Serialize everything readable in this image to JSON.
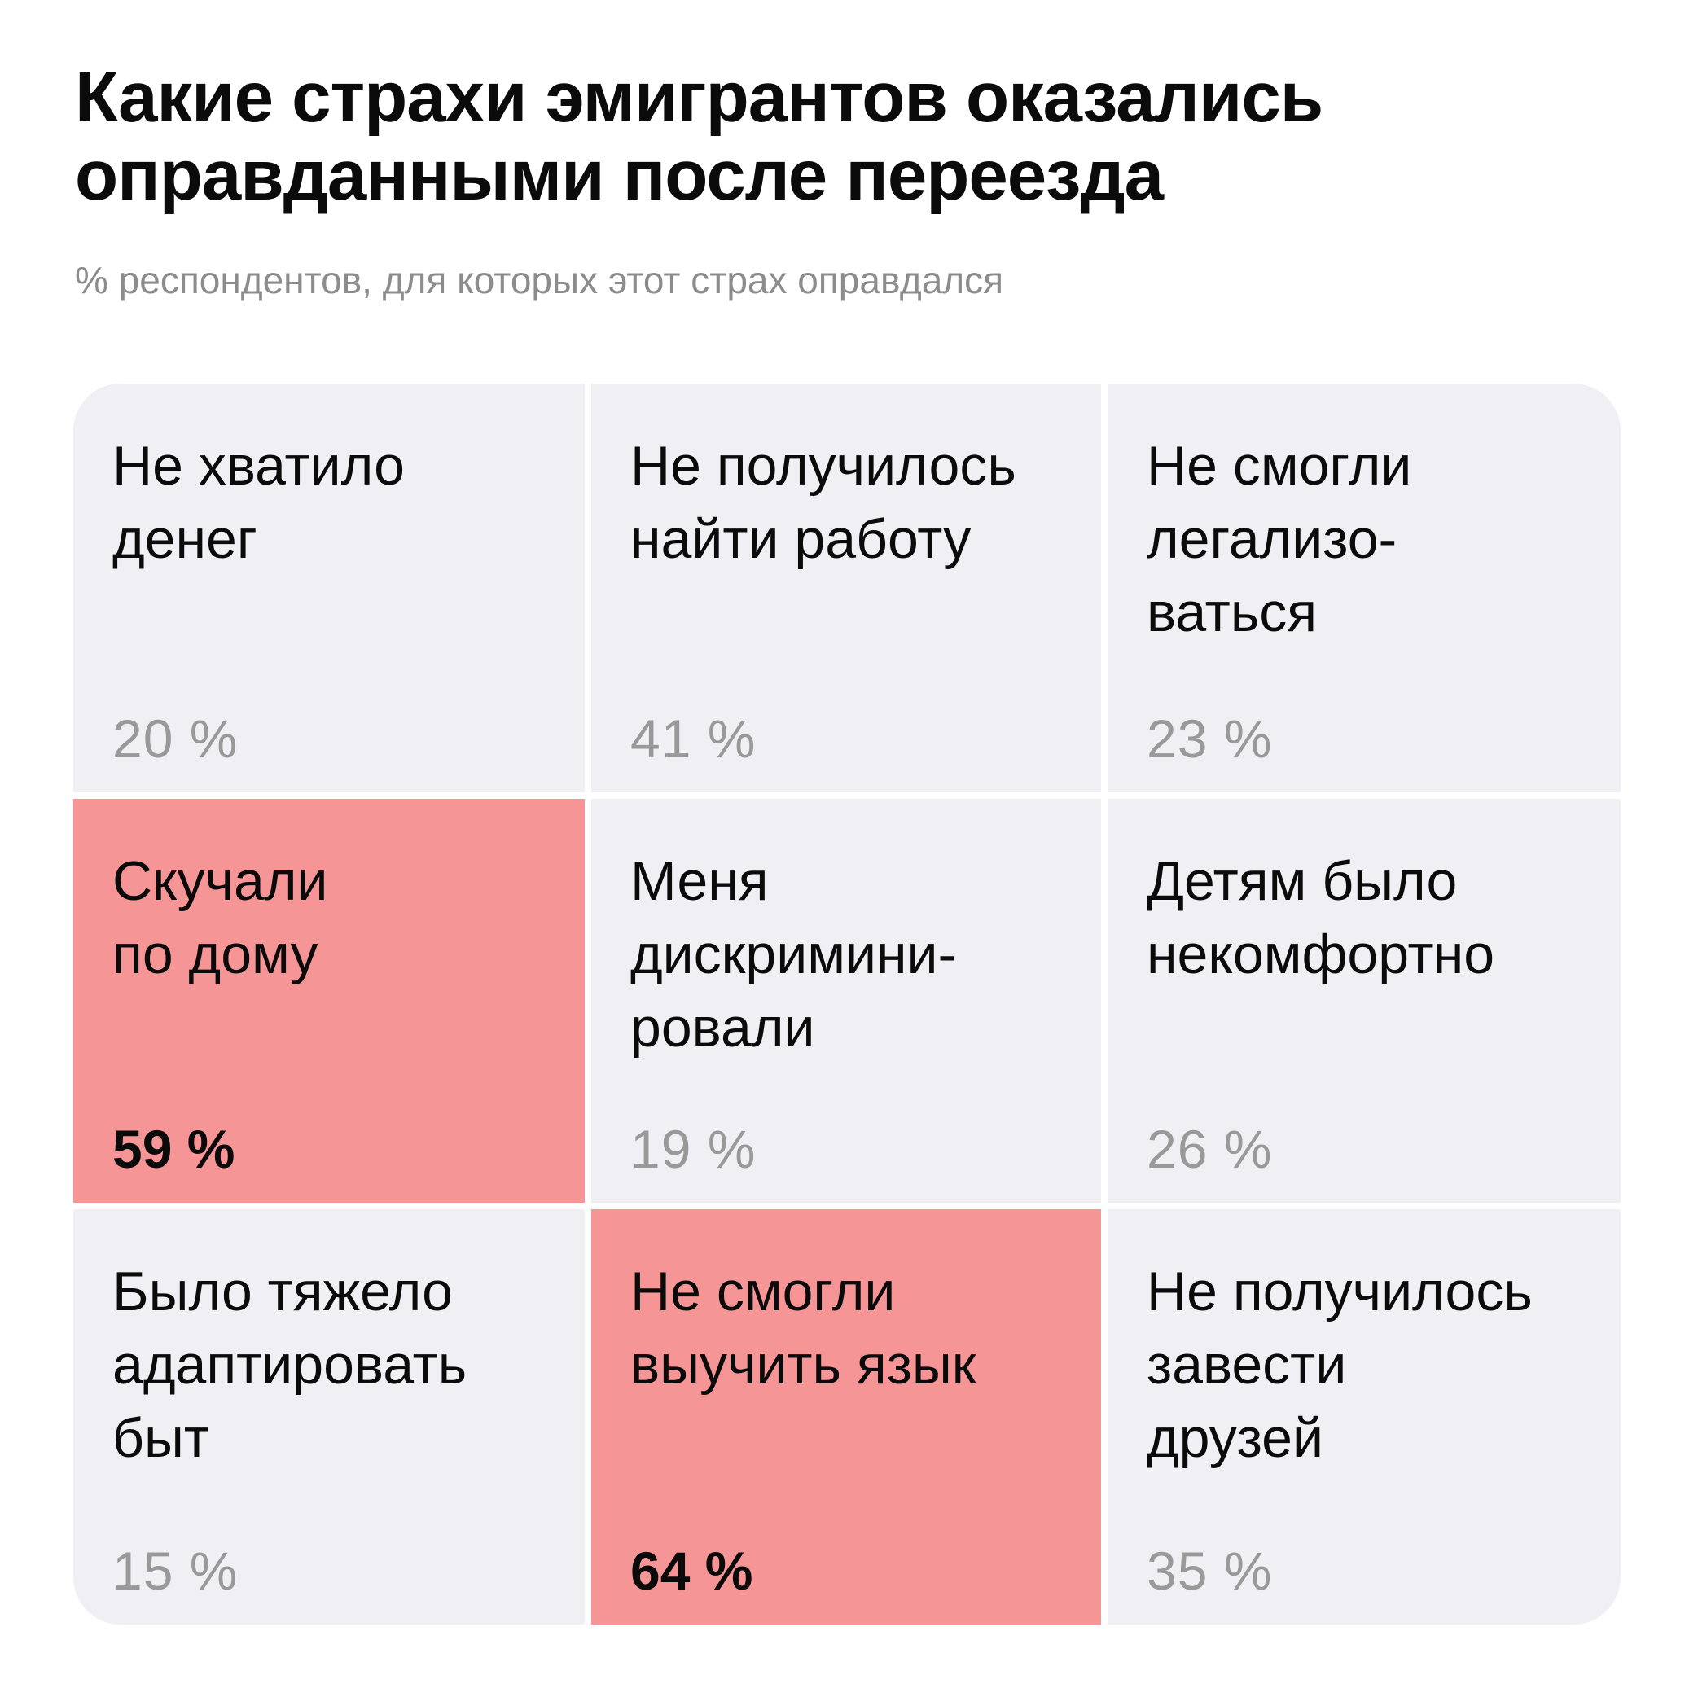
{
  "title": "Какие страхи эмигрантов оказались оправданными после переезда",
  "subtitle": "% респондентов, для которых этот страх оправдался",
  "colors": {
    "cell_background": "#efeff4",
    "highlight_background": "#f69596",
    "value_text": "#999999",
    "text": "#0b0b0b"
  },
  "chart_data": {
    "type": "table",
    "title": "Какие страхи эмигрантов оказались оправданными после переезда",
    "subtitle": "% респондентов, для которых этот страх оправдался",
    "unit": "%",
    "cells": [
      {
        "label": "Не хватило\nденег",
        "value": 20,
        "value_text": "20 %",
        "highlighted": false
      },
      {
        "label": "Не получилось\nнайти работу",
        "value": 41,
        "value_text": "41 %",
        "highlighted": false
      },
      {
        "label": "Не смогли\nлегализо-\nваться",
        "value": 23,
        "value_text": "23 %",
        "highlighted": false
      },
      {
        "label": "Скучали\nпо дому",
        "value": 59,
        "value_text": "59 %",
        "highlighted": true
      },
      {
        "label": "Меня\nдискримини-\nровали",
        "value": 19,
        "value_text": "19 %",
        "highlighted": false
      },
      {
        "label": "Детям было\nнекомфортно",
        "value": 26,
        "value_text": "26 %",
        "highlighted": false
      },
      {
        "label": "Было тяжело\nадаптировать\nбыт",
        "value": 15,
        "value_text": "15 %",
        "highlighted": false
      },
      {
        "label": "Не смогли\nвыучить язык",
        "value": 64,
        "value_text": "64 %",
        "highlighted": true
      },
      {
        "label": "Не получилось\nзавести\nдрузей",
        "value": 35,
        "value_text": "35 %",
        "highlighted": false
      }
    ]
  }
}
